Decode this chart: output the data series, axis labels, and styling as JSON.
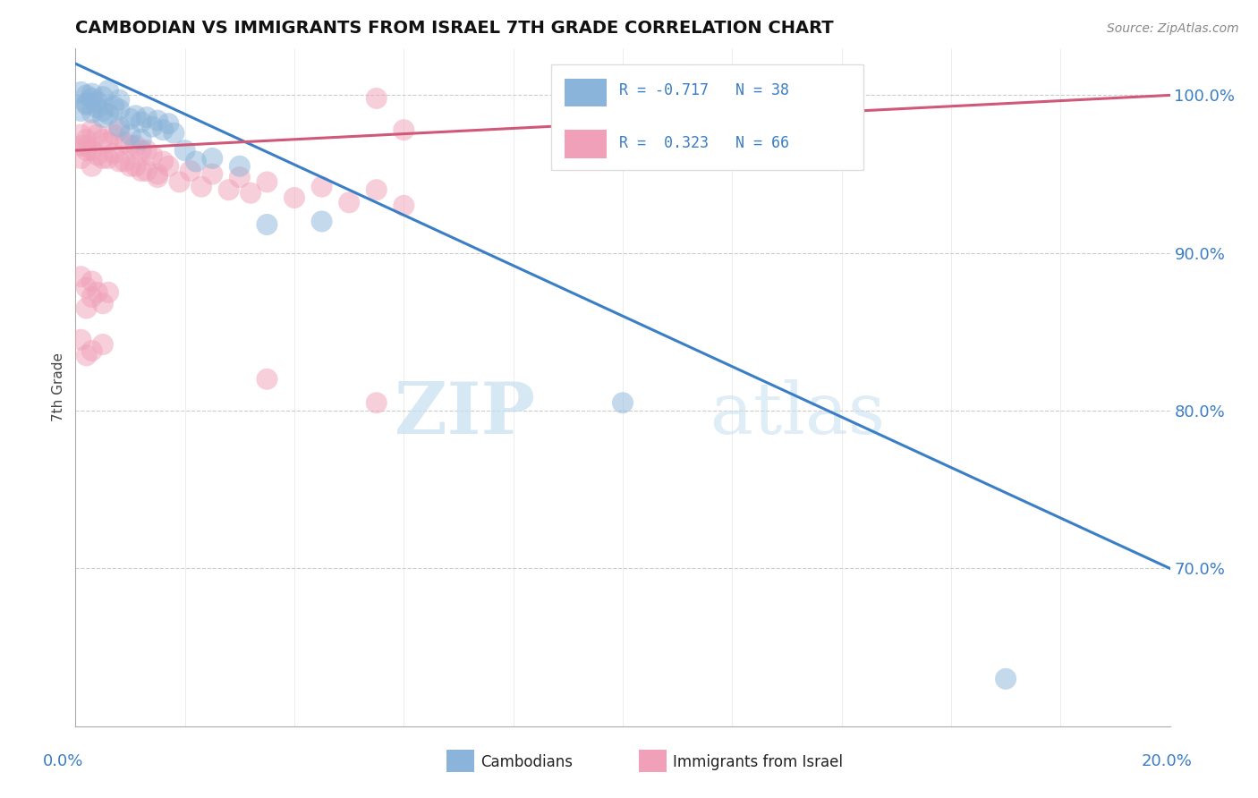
{
  "title": "CAMBODIAN VS IMMIGRANTS FROM ISRAEL 7TH GRADE CORRELATION CHART",
  "source": "Source: ZipAtlas.com",
  "ylabel": "7th Grade",
  "ylabel_right_ticks": [
    "70.0%",
    "80.0%",
    "90.0%",
    "100.0%"
  ],
  "ylabel_right_vals": [
    70.0,
    80.0,
    90.0,
    100.0
  ],
  "legend_R_blue": "R = -0.717",
  "legend_N_blue": "N = 38",
  "legend_R_pink": "R =  0.323",
  "legend_N_pink": "N = 66",
  "blue_color": "#8ab4d9",
  "pink_color": "#f0a0b8",
  "blue_line_color": "#3a7ec6",
  "pink_line_color": "#d05878",
  "background_color": "#ffffff",
  "watermark_zip": "ZIP",
  "watermark_atlas": "atlas",
  "xlim": [
    0.0,
    20.0
  ],
  "ylim": [
    60.0,
    103.0
  ],
  "blue_line_x": [
    0.0,
    20.0
  ],
  "blue_line_y": [
    102.0,
    70.0
  ],
  "pink_line_x": [
    0.0,
    20.0
  ],
  "pink_line_y": [
    96.5,
    100.0
  ],
  "blue_dots": [
    [
      0.2,
      99.5
    ],
    [
      0.4,
      99.2
    ],
    [
      0.3,
      99.8
    ],
    [
      0.5,
      99.0
    ],
    [
      0.6,
      98.8
    ],
    [
      0.7,
      99.3
    ],
    [
      0.8,
      99.1
    ],
    [
      1.0,
      98.5
    ],
    [
      1.1,
      98.7
    ],
    [
      1.2,
      98.3
    ],
    [
      1.3,
      98.6
    ],
    [
      1.4,
      98.0
    ],
    [
      1.5,
      98.4
    ],
    [
      1.6,
      97.8
    ],
    [
      1.7,
      98.2
    ],
    [
      1.8,
      97.6
    ],
    [
      0.1,
      99.0
    ],
    [
      0.2,
      99.4
    ],
    [
      0.3,
      98.9
    ],
    [
      0.4,
      99.6
    ],
    [
      0.5,
      98.6
    ],
    [
      0.8,
      98.0
    ],
    [
      1.0,
      97.5
    ],
    [
      1.2,
      97.2
    ],
    [
      2.0,
      96.5
    ],
    [
      2.5,
      96.0
    ],
    [
      3.0,
      95.5
    ],
    [
      2.2,
      95.8
    ],
    [
      3.5,
      91.8
    ],
    [
      4.5,
      92.0
    ],
    [
      10.0,
      80.5
    ],
    [
      17.0,
      63.0
    ],
    [
      0.1,
      100.2
    ],
    [
      0.2,
      100.0
    ],
    [
      0.3,
      100.1
    ],
    [
      0.5,
      99.9
    ],
    [
      0.6,
      100.3
    ],
    [
      0.8,
      99.7
    ]
  ],
  "pink_dots": [
    [
      0.1,
      96.8
    ],
    [
      0.2,
      97.2
    ],
    [
      0.3,
      96.5
    ],
    [
      0.4,
      97.5
    ],
    [
      0.5,
      96.0
    ],
    [
      0.6,
      97.0
    ],
    [
      0.7,
      96.3
    ],
    [
      0.8,
      97.8
    ],
    [
      0.9,
      95.8
    ],
    [
      1.0,
      96.8
    ],
    [
      1.1,
      95.5
    ],
    [
      1.2,
      96.5
    ],
    [
      1.3,
      95.2
    ],
    [
      1.4,
      96.2
    ],
    [
      1.5,
      95.0
    ],
    [
      1.6,
      95.8
    ],
    [
      0.1,
      97.5
    ],
    [
      0.2,
      96.8
    ],
    [
      0.3,
      97.8
    ],
    [
      0.4,
      96.2
    ],
    [
      0.5,
      97.2
    ],
    [
      0.6,
      96.0
    ],
    [
      0.7,
      97.5
    ],
    [
      0.8,
      95.8
    ],
    [
      0.9,
      97.0
    ],
    [
      1.0,
      95.5
    ],
    [
      1.1,
      96.8
    ],
    [
      1.2,
      95.2
    ],
    [
      1.3,
      96.5
    ],
    [
      1.5,
      94.8
    ],
    [
      1.7,
      95.5
    ],
    [
      1.9,
      94.5
    ],
    [
      2.1,
      95.2
    ],
    [
      2.3,
      94.2
    ],
    [
      2.5,
      95.0
    ],
    [
      2.8,
      94.0
    ],
    [
      3.0,
      94.8
    ],
    [
      3.2,
      93.8
    ],
    [
      3.5,
      94.5
    ],
    [
      4.0,
      93.5
    ],
    [
      4.5,
      94.2
    ],
    [
      5.0,
      93.2
    ],
    [
      5.5,
      94.0
    ],
    [
      6.0,
      93.0
    ],
    [
      0.1,
      88.5
    ],
    [
      0.2,
      87.8
    ],
    [
      0.3,
      88.2
    ],
    [
      0.4,
      87.5
    ],
    [
      0.2,
      86.5
    ],
    [
      0.3,
      87.2
    ],
    [
      0.5,
      86.8
    ],
    [
      0.6,
      87.5
    ],
    [
      0.1,
      84.5
    ],
    [
      0.3,
      83.8
    ],
    [
      0.5,
      84.2
    ],
    [
      0.2,
      83.5
    ],
    [
      10.0,
      100.0
    ],
    [
      0.1,
      96.0
    ],
    [
      0.2,
      96.5
    ],
    [
      0.3,
      95.5
    ],
    [
      5.5,
      80.5
    ],
    [
      3.5,
      82.0
    ],
    [
      5.5,
      99.8
    ],
    [
      6.0,
      97.8
    ],
    [
      12.0,
      96.5
    ],
    [
      13.0,
      97.0
    ]
  ]
}
